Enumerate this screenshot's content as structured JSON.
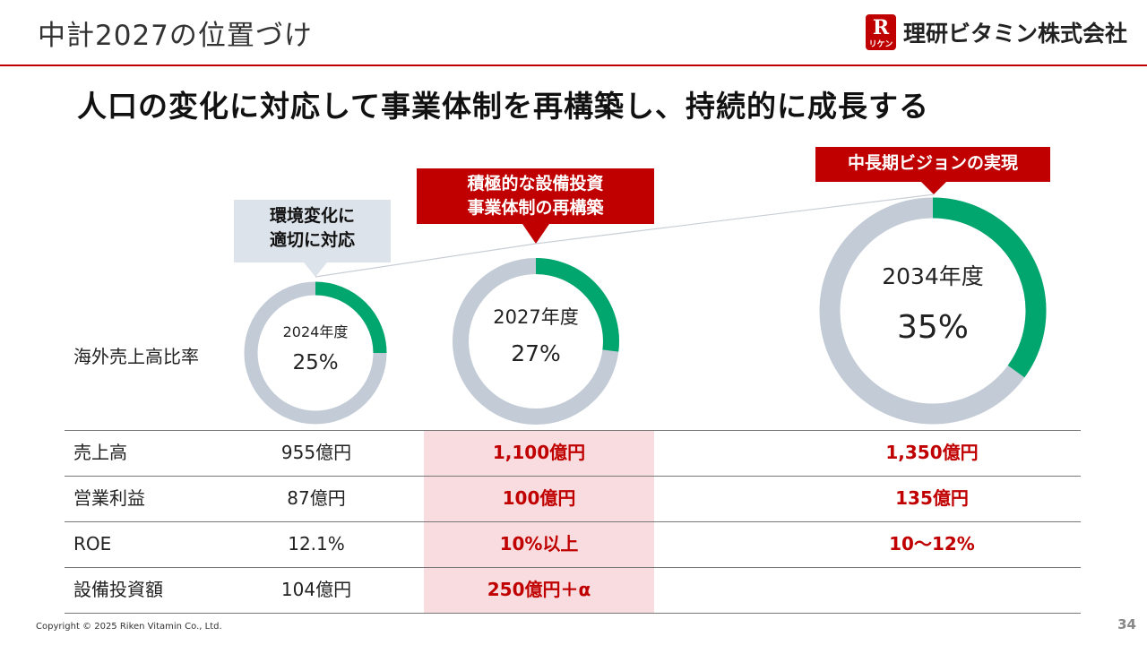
{
  "header": {
    "title": "中計2027の位置づけ",
    "logo_mark": "R",
    "logo_sub": "リケン",
    "logo_text": "理研ビタミン株式会社"
  },
  "headline": "人口の変化に対応して事業体制を再構築し、持続的に成長する",
  "callouts": [
    {
      "lines": [
        "環境変化に",
        "適切に対応"
      ],
      "style": "gray"
    },
    {
      "lines": [
        "積極的な設備投資",
        "事業体制の再構築"
      ],
      "style": "red"
    },
    {
      "lines": [
        "中長期ビジョンの実現"
      ],
      "style": "red"
    }
  ],
  "chart_data": {
    "type": "pie",
    "row_label": "海外売上高比率",
    "series": [
      {
        "year": "2024年度",
        "value": 25,
        "label": "25%"
      },
      {
        "year": "2027年度",
        "value": 27,
        "label": "27%"
      },
      {
        "year": "2034年度",
        "value": 35,
        "label": "35%"
      }
    ],
    "colors": {
      "share": "#00a66e",
      "rest": "#c2cbd6"
    }
  },
  "table": {
    "rows": [
      {
        "label": "売上高",
        "c2024": "955億円",
        "c2027": "1,100億円",
        "c2034": "1,350億円"
      },
      {
        "label": "営業利益",
        "c2024": "87億円",
        "c2027": "100億円",
        "c2034": "135億円"
      },
      {
        "label": "ROE",
        "c2024": "12.1%",
        "c2027": "10%以上",
        "c2034": "10～12%"
      },
      {
        "label": "設備投資額",
        "c2024": "104億円",
        "c2027": "250億円＋α",
        "c2034": ""
      }
    ]
  },
  "footer": {
    "copyright": "Copyright © 2025 Riken Vitamin Co., Ltd.",
    "page": "34"
  },
  "colors": {
    "accent": "#c00000",
    "callout_gray": "#dde3ea",
    "highlight": "#f8dcdf"
  }
}
